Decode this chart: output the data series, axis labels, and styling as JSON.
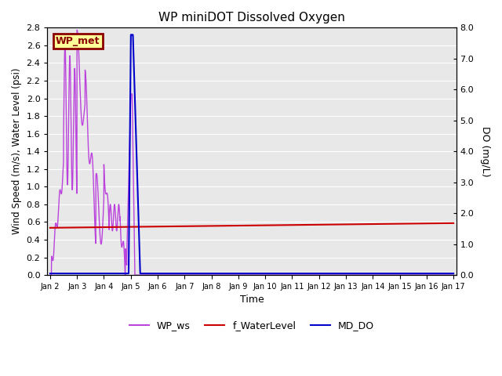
{
  "title": "WP miniDOT Dissolved Oxygen",
  "xlabel": "Time",
  "ylabel_left": "Wind Speed (m/s), Water Level (psi)",
  "ylabel_right": "DO (mg/L)",
  "annotation_text": "WP_met",
  "annotation_facecolor": "#ffff99",
  "annotation_edgecolor": "#8B0000",
  "annotation_textcolor": "#8B0000",
  "ylim_left": [
    0.0,
    2.8
  ],
  "ylim_right": [
    0.0,
    8.0
  ],
  "yticks_left": [
    0.0,
    0.2,
    0.4,
    0.6,
    0.8,
    1.0,
    1.2,
    1.4,
    1.6,
    1.8,
    2.0,
    2.2,
    2.4,
    2.6,
    2.8
  ],
  "yticks_right": [
    0.0,
    1.0,
    2.0,
    3.0,
    4.0,
    5.0,
    6.0,
    7.0,
    8.0
  ],
  "xtick_labels": [
    "Jan 2",
    "Jan 3",
    "Jan 4",
    "Jan 5",
    "Jan 6",
    "Jan 7",
    "Jan 8",
    "Jan 9",
    "Jan 10",
    "Jan 11",
    "Jan 12",
    "Jan 13",
    "Jan 14",
    "Jan 15",
    "Jan 16",
    "Jan 17"
  ],
  "wp_ws_color": "#bb44dd",
  "f_waterlevel_color": "#cc0000",
  "md_do_color": "#0000cc",
  "background_color": "#e8e8e8",
  "grid_color": "#ffffff",
  "legend_labels": [
    "WP_ws",
    "f_WaterLevel",
    "MD_DO"
  ]
}
